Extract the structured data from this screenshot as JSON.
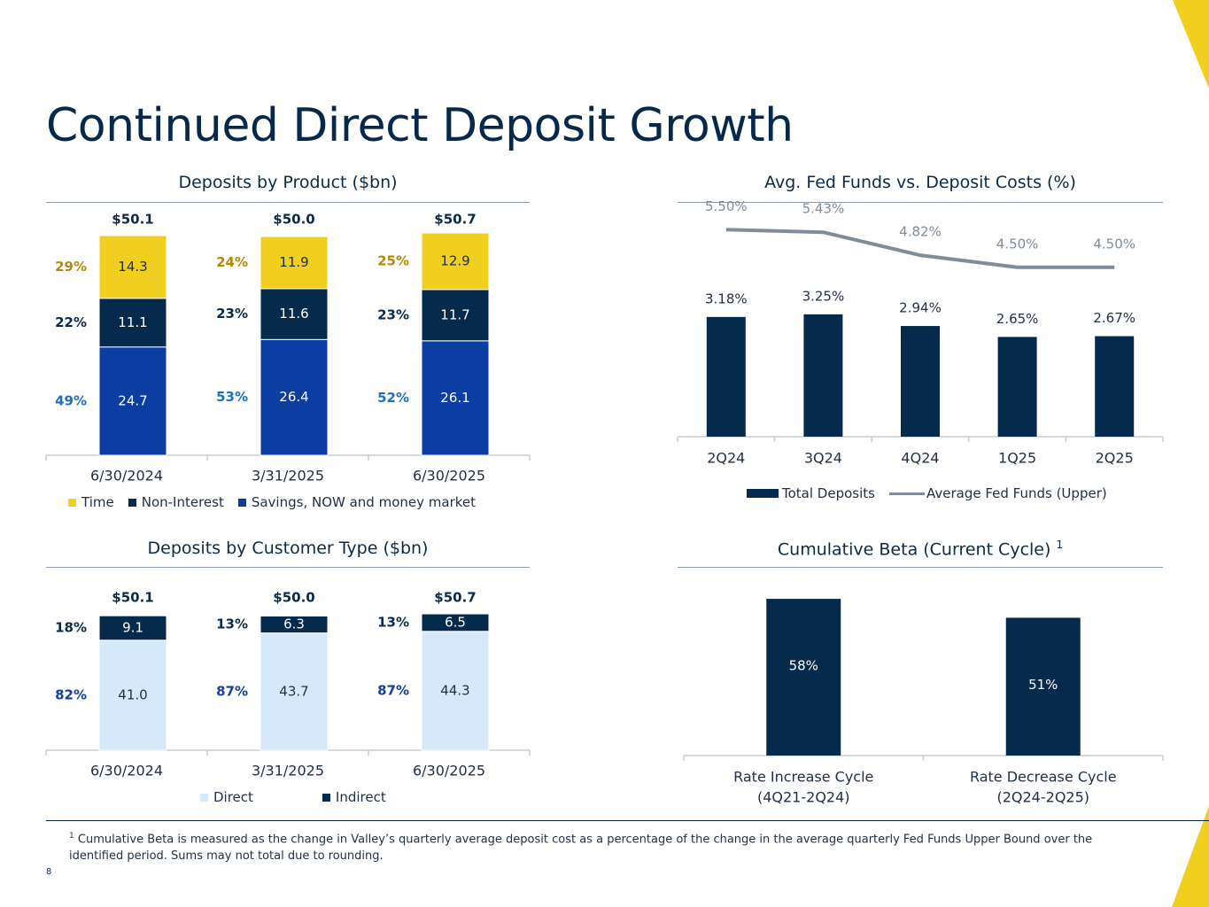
{
  "slide": {
    "title": "Continued Direct Deposit Growth",
    "page_number": "8",
    "footnote_marker": "1",
    "footnote_text": "Cumulative Beta is measured as the change in Valley’s quarterly average deposit cost as a percentage of the change in the average quarterly Fed Funds Upper Bound over the identified period. Sums may not total due to rounding.",
    "colors": {
      "navy": "#062a4c",
      "royal_blue": "#0b3da3",
      "gold": "#f0cf1f",
      "light_blue": "#d6e9fb",
      "gray_line": "#7f8c99",
      "gold_pct": "#b8860b",
      "blue_pct": "#1f6fbf",
      "royal_pct": "#153f99"
    }
  },
  "chart_data": [
    {
      "id": "deposits_by_product",
      "type": "bar",
      "stacked": true,
      "title": "Deposits by Product ($bn)",
      "categories": [
        "6/30/2024",
        "3/31/2025",
        "6/30/2025"
      ],
      "totals": [
        "$50.1",
        "$50.0",
        "$50.7"
      ],
      "series": [
        {
          "name": "Savings, NOW and money market",
          "values": [
            24.7,
            26.4,
            26.1
          ],
          "labels": [
            "24.7",
            "26.4",
            "26.1"
          ],
          "shares": [
            "49%",
            "53%",
            "52%"
          ],
          "color": "#0b3da3"
        },
        {
          "name": "Non-Interest",
          "values": [
            11.1,
            11.6,
            11.7
          ],
          "labels": [
            "11.1",
            "11.6",
            "11.7"
          ],
          "shares": [
            "22%",
            "23%",
            "23%"
          ],
          "color": "#062a4c"
        },
        {
          "name": "Time",
          "values": [
            14.3,
            11.9,
            12.9
          ],
          "labels": [
            "14.3",
            "11.9",
            "12.9"
          ],
          "shares": [
            "29%",
            "24%",
            "25%"
          ],
          "color": "#f0cf1f"
        }
      ],
      "legend": [
        "Time",
        "Non-Interest",
        "Savings, NOW and money market"
      ],
      "ylim": [
        0,
        52
      ]
    },
    {
      "id": "fed_funds_vs_deposit_costs",
      "type": "bar",
      "title": "Avg. Fed Funds vs. Deposit Costs (%)",
      "categories": [
        "2Q24",
        "3Q24",
        "4Q24",
        "1Q25",
        "2Q25"
      ],
      "series": [
        {
          "name": "Total Deposits",
          "kind": "bar",
          "values": [
            3.18,
            3.25,
            2.94,
            2.65,
            2.67
          ],
          "labels": [
            "3.18%",
            "3.25%",
            "2.94%",
            "2.65%",
            "2.67%"
          ],
          "color": "#062a4c"
        },
        {
          "name": "Average Fed Funds (Upper)",
          "kind": "line",
          "values": [
            5.5,
            5.43,
            4.82,
            4.5,
            4.5
          ],
          "labels": [
            "5.50%",
            "5.43%",
            "4.82%",
            "4.50%",
            "4.50%"
          ],
          "color": "#7f8c99"
        }
      ],
      "ylim": [
        0,
        6.9
      ]
    },
    {
      "id": "deposits_by_customer_type",
      "type": "bar",
      "stacked": true,
      "title": "Deposits by Customer Type ($bn)",
      "categories": [
        "6/30/2024",
        "3/31/2025",
        "6/30/2025"
      ],
      "totals": [
        "$50.1",
        "$50.0",
        "$50.7"
      ],
      "series": [
        {
          "name": "Direct",
          "values": [
            41.0,
            43.7,
            44.3
          ],
          "labels": [
            "41.0",
            "43.7",
            "44.3"
          ],
          "shares": [
            "82%",
            "87%",
            "87%"
          ],
          "color": "#d6e9fb"
        },
        {
          "name": "Indirect",
          "values": [
            9.1,
            6.3,
            6.5
          ],
          "labels": [
            "9.1",
            "6.3",
            "6.5"
          ],
          "shares": [
            "18%",
            "13%",
            "13%"
          ],
          "color": "#062a4c"
        }
      ],
      "legend": [
        "Direct",
        "Indirect"
      ],
      "ylim": [
        0,
        52
      ]
    },
    {
      "id": "cumulative_beta",
      "type": "bar",
      "title": "Cumulative Beta (Current Cycle)",
      "title_superscript": "1",
      "categories": [
        {
          "line1": "Rate Increase Cycle",
          "line2": "(4Q21-2Q24)"
        },
        {
          "line1": "Rate Decrease Cycle",
          "line2": "(2Q24-2Q25)"
        }
      ],
      "values": [
        58,
        51
      ],
      "labels": [
        "58%",
        "51%"
      ],
      "color": "#062a4c",
      "ylim": [
        0,
        65
      ]
    }
  ]
}
